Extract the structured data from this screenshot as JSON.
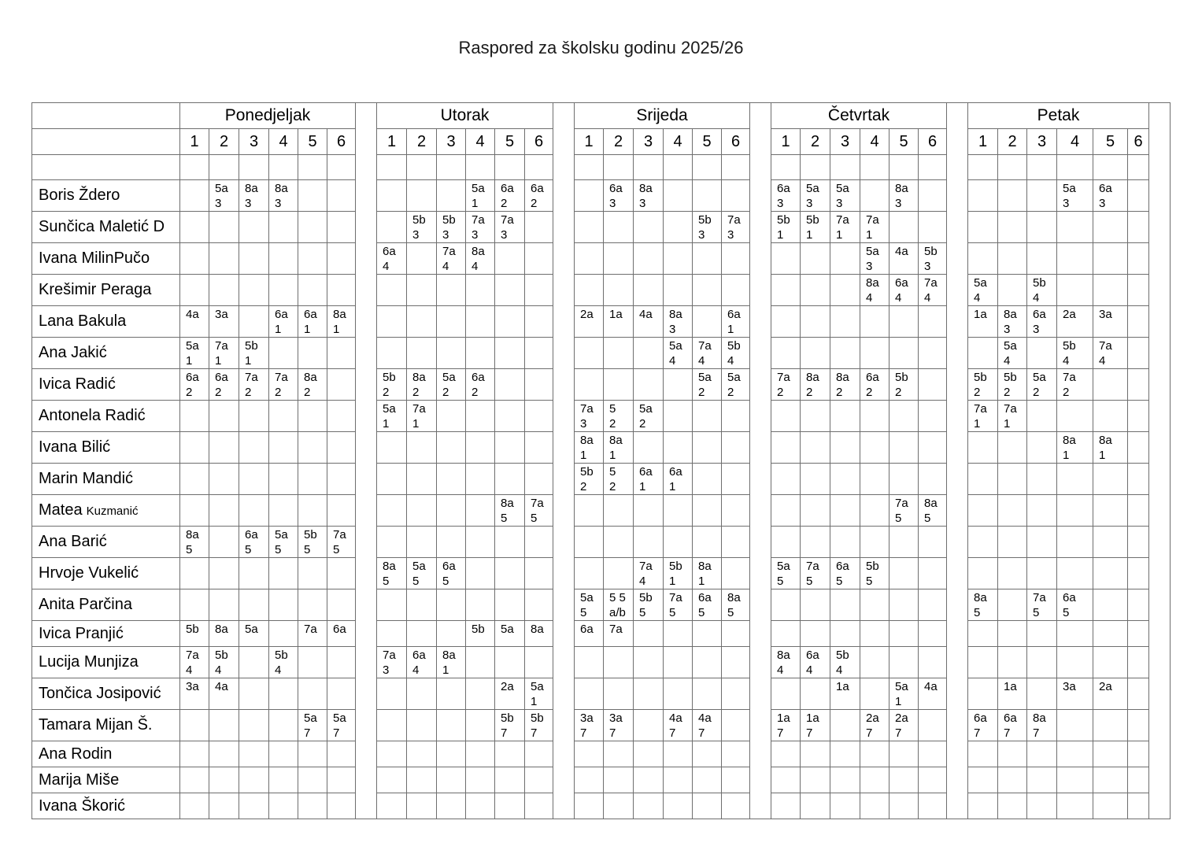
{
  "title": "Raspored za školsku godinu 2025/26",
  "schedule": {
    "days": [
      "Ponedjeljak",
      "Utorak",
      "Srijeda",
      "Četvrtak",
      "Petak"
    ],
    "periods": [
      "1",
      "2",
      "3",
      "4",
      "5",
      "6"
    ],
    "teachers": [
      {
        "name": "Boris Ždero",
        "small": "",
        "cells": [
          [
            "",
            "5a\n3",
            "8a\n3",
            "8a\n3",
            "",
            ""
          ],
          [
            "",
            "",
            "",
            "5a\n1",
            "6a\n2",
            "6a\n2"
          ],
          [
            "",
            "6a\n3",
            "8a\n3",
            "",
            "",
            ""
          ],
          [
            "6a\n3",
            "5a\n3",
            "5a\n3",
            "",
            "8a\n3",
            ""
          ],
          [
            "",
            "",
            "",
            "5a\n3",
            "6a\n3",
            ""
          ]
        ]
      },
      {
        "name": "Sunčica Maletić D",
        "small": "",
        "cells": [
          [
            "",
            "",
            "",
            "",
            "",
            ""
          ],
          [
            "",
            "5b\n3",
            "5b\n3",
            "7a\n3",
            "7a\n3",
            ""
          ],
          [
            "",
            "",
            "",
            "",
            "5b\n3",
            "7a\n3"
          ],
          [
            "5b\n1",
            "5b\n1",
            "7a\n1",
            "7a\n1",
            "",
            ""
          ],
          [
            "",
            "",
            "",
            "",
            "",
            ""
          ]
        ]
      },
      {
        "name": "Ivana MilinPučo",
        "small": "",
        "cells": [
          [
            "",
            "",
            "",
            "",
            "",
            ""
          ],
          [
            "6a\n4",
            "",
            "7a\n4",
            "8a\n4",
            "",
            ""
          ],
          [
            "",
            "",
            "",
            "",
            "",
            ""
          ],
          [
            "",
            "",
            "",
            "5a\n3",
            "4a",
            "5b\n3"
          ],
          [
            "",
            "",
            "",
            "",
            "",
            ""
          ]
        ]
      },
      {
        "name": "Krešimir Peraga",
        "small": "",
        "cells": [
          [
            "",
            "",
            "",
            "",
            "",
            ""
          ],
          [
            "",
            "",
            "",
            "",
            "",
            ""
          ],
          [
            "",
            "",
            "",
            "",
            "",
            ""
          ],
          [
            "",
            "",
            "",
            "8a\n4",
            "6a\n4",
            "7a\n4"
          ],
          [
            "5a\n4",
            "",
            "5b\n4",
            "",
            "",
            ""
          ]
        ]
      },
      {
        "name": "Lana Bakula",
        "small": "",
        "cells": [
          [
            "4a",
            "3a",
            "",
            "6a\n1",
            "6a\n1",
            "8a\n1"
          ],
          [
            "",
            "",
            "",
            "",
            "",
            ""
          ],
          [
            "2a",
            "1a",
            "4a",
            "8a\n3",
            "",
            "6a\n1"
          ],
          [
            "",
            "",
            "",
            "",
            "",
            ""
          ],
          [
            "1a",
            "8a\n3",
            "6a\n3",
            "2a",
            "3a",
            ""
          ]
        ]
      },
      {
        "name": "Ana Jakić",
        "small": "",
        "cells": [
          [
            "5a\n1",
            "7a\n1",
            "5b\n1",
            "",
            "",
            ""
          ],
          [
            "",
            "",
            "",
            "",
            "",
            ""
          ],
          [
            "",
            "",
            "",
            "5a\n4",
            "7a\n4",
            "5b\n4"
          ],
          [
            "",
            "",
            "",
            "",
            "",
            ""
          ],
          [
            "",
            "5a\n4",
            "",
            "5b\n4",
            "7a\n4",
            ""
          ]
        ]
      },
      {
        "name": "Ivica Radić",
        "small": "",
        "cells": [
          [
            "6a\n2",
            "6a\n2",
            "7a\n2",
            "7a\n2",
            "8a\n2",
            ""
          ],
          [
            "5b\n2",
            "8a\n2",
            "5a\n2",
            "6a\n2",
            "",
            ""
          ],
          [
            "",
            "",
            "",
            "",
            "5a\n2",
            "5a\n2"
          ],
          [
            "7a\n2",
            "8a\n2",
            "8a\n2",
            "6a\n2",
            "5b\n2",
            ""
          ],
          [
            "5b\n2",
            "5b\n2",
            "5a\n2",
            "7a\n2",
            "",
            ""
          ]
        ]
      },
      {
        "name": "Antonela Radić",
        "small": "",
        "cells": [
          [
            "",
            "",
            "",
            "",
            "",
            ""
          ],
          [
            "5a\n1",
            "7a\n1",
            "",
            "",
            "",
            ""
          ],
          [
            "7a\n3",
            "5\n2",
            "5a\n2",
            "",
            "",
            ""
          ],
          [
            "",
            "",
            "",
            "",
            "",
            ""
          ],
          [
            "7a\n1",
            "7a\n1",
            "",
            "",
            "",
            ""
          ]
        ]
      },
      {
        "name": "Ivana Bilić",
        "small": "",
        "cells": [
          [
            "",
            "",
            "",
            "",
            "",
            ""
          ],
          [
            "",
            "",
            "",
            "",
            "",
            ""
          ],
          [
            "8a\n1",
            "8a\n1",
            "",
            "",
            "",
            ""
          ],
          [
            "",
            "",
            "",
            "",
            "",
            ""
          ],
          [
            "",
            "",
            "",
            "8a\n1",
            "8a\n1",
            ""
          ]
        ]
      },
      {
        "name": "Marin Mandić",
        "small": "",
        "cells": [
          [
            "",
            "",
            "",
            "",
            "",
            ""
          ],
          [
            "",
            "",
            "",
            "",
            "",
            ""
          ],
          [
            "5b\n2",
            "5\n2",
            "6a\n1",
            "6a\n1",
            "",
            ""
          ],
          [
            "",
            "",
            "",
            "",
            "",
            ""
          ],
          [
            "",
            "",
            "",
            "",
            "",
            ""
          ]
        ]
      },
      {
        "name": "Matea",
        "small": "Kuzmanić",
        "cells": [
          [
            "",
            "",
            "",
            "",
            "",
            ""
          ],
          [
            "",
            "",
            "",
            "",
            "8a\n5",
            "7a\n5"
          ],
          [
            "",
            "",
            "",
            "",
            "",
            ""
          ],
          [
            "",
            "",
            "",
            "",
            "7a\n5",
            "8a\n5"
          ],
          [
            "",
            "",
            "",
            "",
            "",
            ""
          ]
        ]
      },
      {
        "name": "Ana Barić",
        "small": "",
        "cells": [
          [
            "8a\n5",
            "",
            "6a\n5",
            "5a\n5",
            "5b\n5",
            "7a\n5"
          ],
          [
            "",
            "",
            "",
            "",
            "",
            ""
          ],
          [
            "",
            "",
            "",
            "",
            "",
            ""
          ],
          [
            "",
            "",
            "",
            "",
            "",
            ""
          ],
          [
            "",
            "",
            "",
            "",
            "",
            ""
          ]
        ]
      },
      {
        "name": "Hrvoje Vukelić",
        "small": "",
        "cells": [
          [
            "",
            "",
            "",
            "",
            "",
            ""
          ],
          [
            "8a\n5",
            "5a\n5",
            "6a\n5",
            "",
            "",
            ""
          ],
          [
            "",
            "",
            "7a\n4",
            "5b\n1",
            "8a\n1",
            ""
          ],
          [
            "5a\n5",
            "7a\n5",
            "6a\n5",
            "5b\n5",
            "",
            ""
          ],
          [
            "",
            "",
            "",
            "",
            "",
            ""
          ]
        ]
      },
      {
        "name": "Anita Parčina",
        "small": "",
        "cells": [
          [
            "",
            "",
            "",
            "",
            "",
            ""
          ],
          [
            "",
            "",
            "",
            "",
            "",
            ""
          ],
          [
            "5a\n5",
            "5 5\na/b",
            "5b\n5",
            "7a\n5",
            "6a\n5",
            "8a\n5"
          ],
          [
            "",
            "",
            "",
            "",
            "",
            ""
          ],
          [
            "8a\n5",
            "",
            "7a\n5",
            "6a\n5",
            "",
            ""
          ]
        ]
      },
      {
        "name": "Ivica Pranjić",
        "small": "",
        "cells": [
          [
            "5b",
            "8a",
            "5a",
            "",
            "7a",
            "6a"
          ],
          [
            "",
            "",
            "",
            "5b",
            "5a",
            "8a"
          ],
          [
            "6a",
            "7a",
            "",
            "",
            "",
            ""
          ],
          [
            "",
            "",
            "",
            "",
            "",
            ""
          ],
          [
            "",
            "",
            "",
            "",
            "",
            ""
          ]
        ]
      },
      {
        "name": "Lucija Munjiza",
        "small": "",
        "cells": [
          [
            "7a\n4",
            "5b\n4",
            "",
            "5b\n4",
            "",
            ""
          ],
          [
            "7a\n3",
            "6a\n4",
            "8a\n1",
            "",
            "",
            ""
          ],
          [
            "",
            "",
            "",
            "",
            "",
            ""
          ],
          [
            "8a\n4",
            "6a\n4",
            "5b\n4",
            "",
            "",
            ""
          ],
          [
            "",
            "",
            "",
            "",
            "",
            ""
          ]
        ]
      },
      {
        "name": "Tončica Josipović",
        "small": "",
        "cells": [
          [
            "3a",
            "4a",
            "",
            "",
            "",
            ""
          ],
          [
            "",
            "",
            "",
            "",
            "2a",
            "5a\n1"
          ],
          [
            "",
            "",
            "",
            "",
            "",
            ""
          ],
          [
            "",
            "",
            "1a",
            "",
            "5a\n1",
            "4a"
          ],
          [
            "",
            "1a",
            "",
            "3a",
            "2a",
            ""
          ]
        ]
      },
      {
        "name": "Tamara Mijan Š.",
        "small": "",
        "cells": [
          [
            "",
            "",
            "",
            "",
            "5a\n7",
            "5a\n7"
          ],
          [
            "",
            "",
            "",
            "",
            "5b\n7",
            "5b\n7"
          ],
          [
            "3a\n7",
            "3a\n7",
            "",
            "4a\n7",
            "4a\n7",
            ""
          ],
          [
            "1a\n7",
            "1a\n7",
            "",
            "2a\n7",
            "2a\n7",
            ""
          ],
          [
            "6a\n7",
            "6a\n7",
            "8a\n7",
            "",
            "",
            ""
          ]
        ]
      },
      {
        "name": "Ana Rodin",
        "small": "",
        "cells": [
          [
            "",
            "",
            "",
            "",
            "",
            ""
          ],
          [
            "",
            "",
            "",
            "",
            "",
            ""
          ],
          [
            "",
            "",
            "",
            "",
            "",
            ""
          ],
          [
            "",
            "",
            "",
            "",
            "",
            ""
          ],
          [
            "",
            "",
            "",
            "",
            "",
            ""
          ]
        ]
      },
      {
        "name": "Marija Miše",
        "small": "",
        "cells": [
          [
            "",
            "",
            "",
            "",
            "",
            ""
          ],
          [
            "",
            "",
            "",
            "",
            "",
            ""
          ],
          [
            "",
            "",
            "",
            "",
            "",
            ""
          ],
          [
            "",
            "",
            "",
            "",
            "",
            ""
          ],
          [
            "",
            "",
            "",
            "",
            "",
            ""
          ]
        ]
      },
      {
        "name": "Ivana Škorić",
        "small": "",
        "cells": [
          [
            "",
            "",
            "",
            "",
            "",
            ""
          ],
          [
            "",
            "",
            "",
            "",
            "",
            ""
          ],
          [
            "",
            "",
            "",
            "",
            "",
            ""
          ],
          [
            "",
            "",
            "",
            "",
            "",
            ""
          ],
          [
            "",
            "",
            "",
            "",
            "",
            ""
          ]
        ]
      }
    ]
  }
}
